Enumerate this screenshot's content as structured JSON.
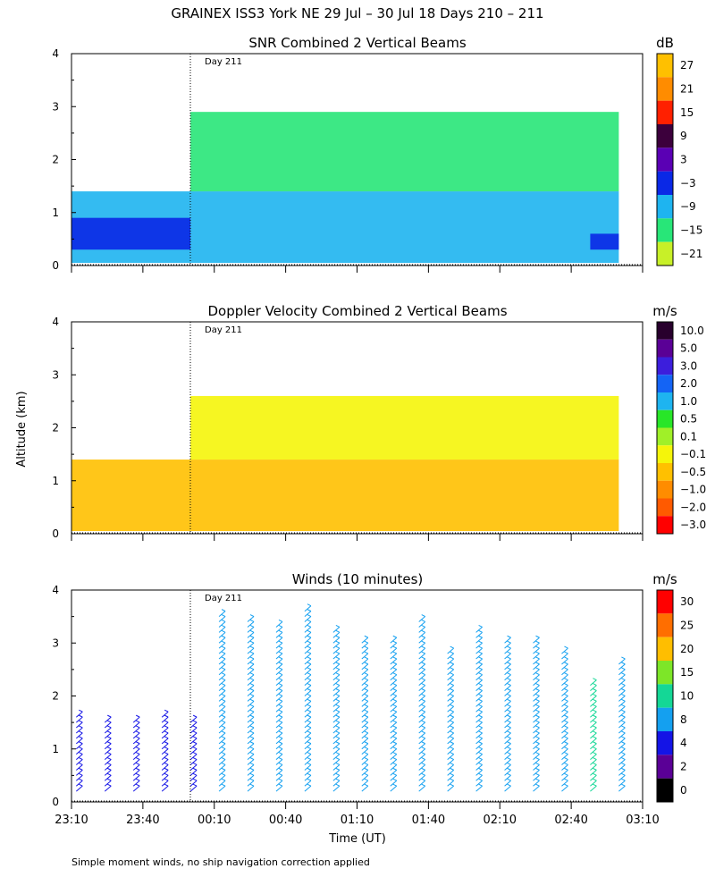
{
  "title": "GRAINEX ISS3 York NE  29 Jul – 30 Jul 18 Days 210 – 211",
  "footnote": "Simple moment winds, no ship navigation correction applied",
  "chart_data": [
    {
      "type": "heatmap",
      "title": "SNR Combined 2 Vertical Beams",
      "day_label": "Day 211",
      "xlabel": "",
      "ylabel": "",
      "x_range": [
        23.1667,
        27.1667
      ],
      "ylim": [
        0,
        4
      ],
      "y_ticks": [
        0,
        1,
        2,
        3,
        4
      ],
      "colorbar": {
        "unit": "dB",
        "labels": [
          "27",
          "21",
          "15",
          "9",
          "3",
          "−3",
          "−9",
          "−15",
          "−21"
        ],
        "colors": [
          "#ffc000",
          "#ff8c00",
          "#ff2000",
          "#3c003c",
          "#5a00b4",
          "#0a28e6",
          "#1eb4f0",
          "#28e678",
          "#c8f028"
        ]
      },
      "regions": [
        {
          "t_start": 23.1667,
          "t_end": 24.0,
          "alt_bottom": 0.05,
          "alt_top": 1.4,
          "level": "−9"
        },
        {
          "t_start": 24.0,
          "t_end": 27.0,
          "alt_bottom": 0.05,
          "alt_top": 1.4,
          "level": "−9"
        },
        {
          "t_start": 24.0,
          "t_end": 27.0,
          "alt_bottom": 1.4,
          "alt_top": 2.9,
          "level": "−15"
        },
        {
          "t_start": 23.1667,
          "t_end": 24.0,
          "alt_bottom": 0.3,
          "alt_top": 0.9,
          "level": "−3"
        },
        {
          "t_start": 26.8,
          "t_end": 27.0,
          "alt_bottom": 0.3,
          "alt_top": 0.6,
          "level": "−3"
        }
      ]
    },
    {
      "type": "heatmap",
      "title": "Doppler Velocity Combined 2 Vertical Beams",
      "day_label": "Day 211",
      "xlabel": "",
      "ylabel": "Altitude (km)",
      "x_range": [
        23.1667,
        27.1667
      ],
      "ylim": [
        0,
        4
      ],
      "y_ticks": [
        0,
        1,
        2,
        3,
        4
      ],
      "colorbar": {
        "unit": "m/s",
        "labels": [
          "10.0",
          "5.0",
          "3.0",
          "2.0",
          "1.0",
          "0.5",
          "0.1",
          "−0.1",
          "−0.5",
          "−1.0",
          "−2.0",
          "−3.0"
        ],
        "colors": [
          "#28002d",
          "#5a0096",
          "#3c1edc",
          "#1464f5",
          "#1eb4f0",
          "#28e628",
          "#a0f028",
          "#f5f50a",
          "#ffc000",
          "#ff8c00",
          "#ff5a00",
          "#ff0000"
        ]
      },
      "regions": [
        {
          "t_start": 23.1667,
          "t_end": 24.0,
          "alt_bottom": 0.05,
          "alt_top": 1.4,
          "level": "−0.5"
        },
        {
          "t_start": 24.0,
          "t_end": 27.0,
          "alt_bottom": 0.05,
          "alt_top": 1.4,
          "level": "−0.5"
        },
        {
          "t_start": 24.0,
          "t_end": 27.0,
          "alt_bottom": 1.4,
          "alt_top": 2.6,
          "level": "−0.1"
        }
      ]
    },
    {
      "type": "scatter",
      "title": "Winds (10 minutes)",
      "day_label": "Day 211",
      "xlabel": "Time (UT)",
      "ylabel": "",
      "x_range": [
        23.1667,
        27.1667
      ],
      "x_tick_labels": [
        "23:10",
        "23:40",
        "00:10",
        "00:40",
        "01:10",
        "01:40",
        "02:10",
        "02:40",
        "03:10"
      ],
      "ylim": [
        0,
        4
      ],
      "y_ticks": [
        0,
        1,
        2,
        3,
        4
      ],
      "colorbar": {
        "unit": "m/s",
        "labels": [
          "30",
          "25",
          "20",
          "15",
          "10",
          "8",
          "4",
          "2",
          "0"
        ],
        "colors": [
          "#ff0000",
          "#ff6e00",
          "#ffbe00",
          "#7de628",
          "#14d796",
          "#14a0f0",
          "#1414e6",
          "#5a0096",
          "#000000"
        ]
      },
      "profiles": [
        {
          "time": 23.2,
          "alt_top": 1.6,
          "speed": 4
        },
        {
          "time": 23.4,
          "alt_top": 1.5,
          "speed": 4
        },
        {
          "time": 23.6,
          "alt_top": 1.5,
          "speed": 4
        },
        {
          "time": 23.8,
          "alt_top": 1.6,
          "speed": 4
        },
        {
          "time": 24.0,
          "alt_top": 1.5,
          "speed": 4
        },
        {
          "time": 24.2,
          "alt_top": 3.5,
          "speed": 8
        },
        {
          "time": 24.4,
          "alt_top": 3.4,
          "speed": 8
        },
        {
          "time": 24.6,
          "alt_top": 3.3,
          "speed": 8
        },
        {
          "time": 24.8,
          "alt_top": 3.6,
          "speed": 8
        },
        {
          "time": 25.0,
          "alt_top": 3.2,
          "speed": 8
        },
        {
          "time": 25.2,
          "alt_top": 3.0,
          "speed": 8
        },
        {
          "time": 25.4,
          "alt_top": 3.0,
          "speed": 8
        },
        {
          "time": 25.6,
          "alt_top": 3.4,
          "speed": 8
        },
        {
          "time": 25.8,
          "alt_top": 2.8,
          "speed": 8
        },
        {
          "time": 26.0,
          "alt_top": 3.2,
          "speed": 8
        },
        {
          "time": 26.2,
          "alt_top": 3.0,
          "speed": 8
        },
        {
          "time": 26.4,
          "alt_top": 3.0,
          "speed": 8
        },
        {
          "time": 26.6,
          "alt_top": 2.8,
          "speed": 8
        },
        {
          "time": 26.8,
          "alt_top": 2.2,
          "speed": 10
        },
        {
          "time": 27.0,
          "alt_top": 2.6,
          "speed": 8
        }
      ]
    }
  ]
}
